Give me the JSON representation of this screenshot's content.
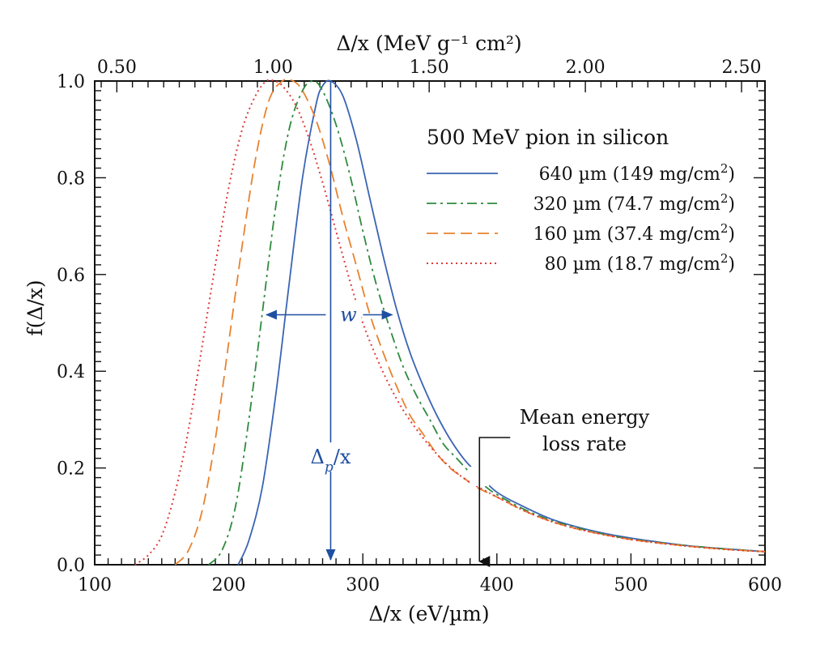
{
  "chart_data": {
    "type": "line",
    "title": "",
    "xlabel": "Δ/x   (eV/µm)",
    "ylabel": "f(Δ/x)",
    "x2label": "Δ/x   (MeV g⁻¹ cm²)",
    "xlim": [
      100,
      600
    ],
    "ylim": [
      0,
      1.0
    ],
    "x_ticks": [
      "100",
      "200",
      "300",
      "400",
      "500",
      "600"
    ],
    "x_tick_values": [
      100,
      200,
      300,
      400,
      500,
      600
    ],
    "y_ticks": [
      "0.0",
      "0.2",
      "0.4",
      "0.6",
      "0.8",
      "1.0"
    ],
    "y_tick_values": [
      0.0,
      0.2,
      0.4,
      0.6,
      0.8,
      1.0
    ],
    "x2_ticks": [
      "0.50",
      "1.00",
      "1.50",
      "2.00",
      "2.50"
    ],
    "x2_tick_values": [
      0.5,
      1.0,
      1.5,
      2.0,
      2.5
    ],
    "x2_to_x_factor": 233.0,
    "legend_title": "500 MeV pion in silicon",
    "legend_position": "top-right",
    "grid": false,
    "series": [
      {
        "name": "640 µm (149 mg/cm²)",
        "label_main": "640 µm (149 mg/cm",
        "color": "#3a64b4",
        "style": "solid",
        "peak": 276,
        "width": 23,
        "tail_join": 380,
        "x": [
          207,
          215,
          225,
          235,
          245,
          255,
          265,
          270,
          276,
          285,
          295,
          305,
          315,
          325,
          335,
          345,
          355,
          365,
          375,
          385,
          400,
          420,
          440,
          460,
          480,
          500,
          520,
          540,
          560,
          580,
          600
        ],
        "y": [
          0.0,
          0.05,
          0.16,
          0.35,
          0.58,
          0.8,
          0.95,
          0.99,
          1.0,
          0.97,
          0.88,
          0.76,
          0.64,
          0.53,
          0.44,
          0.37,
          0.31,
          0.26,
          0.22,
          0.19,
          0.15,
          0.12,
          0.095,
          0.078,
          0.065,
          0.055,
          0.047,
          0.04,
          0.035,
          0.031,
          0.027
        ]
      },
      {
        "name": "320 µm (74.7 mg/cm²)",
        "label_main": "320 µm (74.7 mg/cm",
        "color": "#2e8b3d",
        "style": "dashdot",
        "x": [
          185,
          195,
          205,
          215,
          225,
          235,
          245,
          255,
          263,
          270,
          280,
          290,
          300,
          310,
          320,
          330,
          340,
          350,
          360,
          370,
          380,
          390,
          400,
          420,
          440,
          460,
          480,
          500,
          520,
          540,
          560,
          580,
          600
        ],
        "y": [
          0.0,
          0.03,
          0.12,
          0.3,
          0.52,
          0.74,
          0.9,
          0.98,
          1.0,
          0.98,
          0.91,
          0.81,
          0.69,
          0.58,
          0.49,
          0.41,
          0.35,
          0.3,
          0.25,
          0.22,
          0.19,
          0.165,
          0.145,
          0.115,
          0.092,
          0.076,
          0.063,
          0.053,
          0.046,
          0.04,
          0.035,
          0.031,
          0.027
        ]
      },
      {
        "name": "160 µm (37.4 mg/cm²)",
        "label_main": "160 µm (37.4 mg/cm",
        "color": "#e8822e",
        "style": "dashed",
        "x": [
          160,
          170,
          180,
          190,
          200,
          210,
          220,
          230,
          240,
          248,
          255,
          265,
          275,
          285,
          295,
          305,
          315,
          325,
          335,
          345,
          355,
          365,
          375,
          385,
          400,
          420,
          440,
          460,
          480,
          500,
          520,
          540,
          560,
          580,
          600
        ],
        "y": [
          0.0,
          0.03,
          0.11,
          0.26,
          0.46,
          0.66,
          0.84,
          0.96,
          1.0,
          1.0,
          0.98,
          0.92,
          0.83,
          0.72,
          0.62,
          0.52,
          0.44,
          0.37,
          0.31,
          0.27,
          0.23,
          0.2,
          0.18,
          0.16,
          0.14,
          0.112,
          0.09,
          0.074,
          0.062,
          0.052,
          0.045,
          0.039,
          0.034,
          0.03,
          0.027
        ]
      },
      {
        "name": "80 µm (18.7 mg/cm²)",
        "label_main": "80 µm (18.7 mg/cm",
        "color": "#e03a3a",
        "style": "dotted",
        "x": [
          130,
          140,
          150,
          160,
          170,
          180,
          190,
          200,
          210,
          220,
          228,
          234,
          240,
          250,
          260,
          270,
          280,
          290,
          300,
          310,
          320,
          330,
          340,
          350,
          360,
          370,
          380,
          390,
          400,
          420,
          440,
          460,
          480,
          500,
          520,
          540,
          560,
          580,
          600
        ],
        "y": [
          0.0,
          0.02,
          0.06,
          0.15,
          0.28,
          0.45,
          0.62,
          0.78,
          0.9,
          0.97,
          1.0,
          1.0,
          0.99,
          0.95,
          0.88,
          0.79,
          0.69,
          0.59,
          0.5,
          0.43,
          0.37,
          0.32,
          0.28,
          0.245,
          0.215,
          0.19,
          0.17,
          0.155,
          0.14,
          0.112,
          0.09,
          0.074,
          0.062,
          0.052,
          0.045,
          0.039,
          0.034,
          0.03,
          0.027
        ]
      }
    ],
    "annotations": {
      "width_label": "w",
      "peak_label": "Δp/x",
      "peak_label_main": "Δ",
      "peak_label_sub": "p",
      "peak_label_tail": "/x",
      "peak_x": 276,
      "width_y": 0.5,
      "width_x_left": 228,
      "width_x_right": 322,
      "mean_label_line1": "Mean energy",
      "mean_label_line2": "loss rate",
      "mean_x": 387
    }
  }
}
